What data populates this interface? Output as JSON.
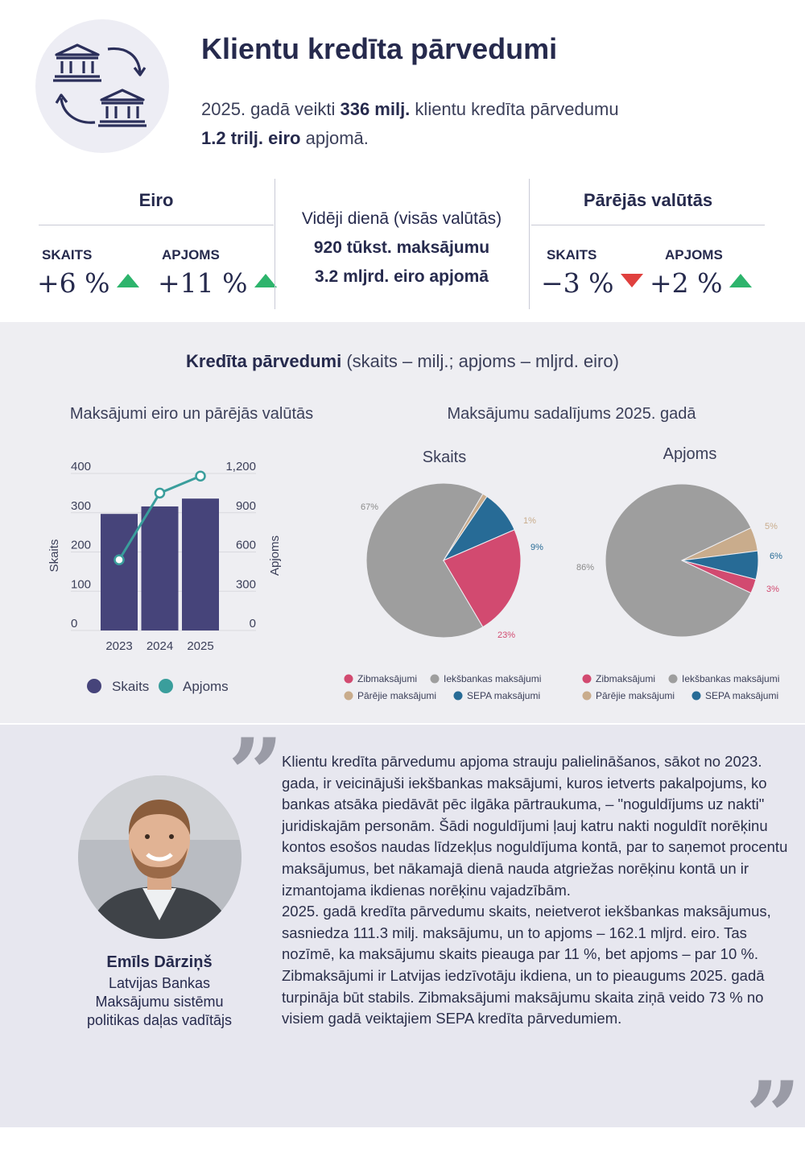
{
  "header": {
    "title": "Klientu kredīta pārvedumi",
    "intro_1": "2025. gadā veikti ",
    "intro_count": "336 milj.",
    "intro_2": " klientu kredīta pārvedumu",
    "intro_volume": "1.2 trilj. eiro",
    "intro_3": " apjomā.",
    "icon": "bank-transfer-icon"
  },
  "stats": {
    "euro": {
      "title": "Eiro",
      "count_label": "SKAITS",
      "count_value": "+6 %",
      "count_trend": "up",
      "volume_label": "APJOMS",
      "volume_value": "+11 %",
      "volume_trend": "up"
    },
    "daily": {
      "line1": "Vidēji dienā (visās valūtās)",
      "line2": "920 tūkst.  maksājumu",
      "line3": "3.2 mljrd. eiro apjomā"
    },
    "other": {
      "title": "Pārējās valūtās",
      "count_label": "SKAITS",
      "count_value": "−3 %",
      "count_trend": "down",
      "volume_label": "APJOMS",
      "volume_value": "+2 %",
      "volume_trend": "up"
    },
    "colors": {
      "up": "#2db46c",
      "down": "#e0403e"
    }
  },
  "charts_section": {
    "title_bold": "Kredīta pārvedumi",
    "title_rest": " (skaits – milj.; apjoms – mljrd. eiro)",
    "bar_title": "Maksājumi eiro un pārējās valūtās",
    "pie_title": "Maksājumu sadalījums 2025. gadā"
  },
  "chart_data": [
    {
      "type": "bar",
      "title": "Maksājumi eiro un pārējās valūtās",
      "categories": [
        "2023",
        "2024",
        "2025"
      ],
      "series": [
        {
          "name": "Skaits",
          "type": "bar",
          "axis": "left",
          "values": [
            297,
            316,
            336
          ],
          "color": "#46447a"
        },
        {
          "name": "Apjoms",
          "type": "line",
          "axis": "right",
          "values": [
            540,
            1050,
            1180
          ],
          "color": "#3a9e9c"
        }
      ],
      "ylabel": "Skaits",
      "y2label": "Apjoms",
      "ylim": [
        0,
        400
      ],
      "y2lim": [
        0,
        1200
      ],
      "yticks": [
        "0",
        "100",
        "200",
        "300",
        "400"
      ],
      "y2ticks": [
        "0",
        "300",
        "600",
        "900",
        "1,200"
      ],
      "legend": [
        "Skaits",
        "Apjoms"
      ]
    },
    {
      "type": "pie",
      "title": "Skaits",
      "slices": [
        {
          "name": "Iekšbankas maksājumi",
          "value": 67,
          "label": "67%",
          "color": "#9e9e9e"
        },
        {
          "name": "Pārējie maksājumi",
          "value": 1,
          "label": "1%",
          "color": "#c9ac8c"
        },
        {
          "name": "SEPA maksājumi",
          "value": 9,
          "label": "9%",
          "color": "#276b96"
        },
        {
          "name": "Zibmaksājumi",
          "value": 23,
          "label": "23%",
          "color": "#d24a70"
        }
      ],
      "legend": [
        "Zibmaksājumi",
        "Iekšbankas maksājumi",
        "Pārējie maksājumi",
        "SEPA maksājumi"
      ]
    },
    {
      "type": "pie",
      "title": "Apjoms",
      "slices": [
        {
          "name": "Iekšbankas maksājumi",
          "value": 86,
          "label": "86%",
          "color": "#9e9e9e"
        },
        {
          "name": "Pārējie maksājumi",
          "value": 5,
          "label": "5%",
          "color": "#c9ac8c"
        },
        {
          "name": "SEPA maksājumi",
          "value": 6,
          "label": "6%",
          "color": "#276b96"
        },
        {
          "name": "Zibmaksājumi",
          "value": 3,
          "label": "3%",
          "color": "#d24a70"
        }
      ],
      "legend": [
        "Zibmaksājumi",
        "Iekšbankas maksājumi",
        "Pārējie maksājumi",
        "SEPA maksājumi"
      ]
    }
  ],
  "quote": {
    "person_name": "Emīls Dārziņš",
    "person_role_1": "Latvijas Bankas",
    "person_role_2": "Maksājumu sistēmu",
    "person_role_3": "politikas daļas vadītājs",
    "paragraph_1": "Klientu kredīta pārvedumu apjoma strauju palielināšanos, sākot no 2023. gada, ir veicinājuši iekšbankas maksājumi, kuros ietverts pakalpojums, ko bankas atsāka piedāvāt pēc ilgāka pārtraukuma, – \"noguldījums uz nakti\" juridiskajām personām. Šādi noguldījumi ļauj katru nakti noguldīt norēķinu kontos esošos naudas līdzekļus noguldījuma kontā, par to saņemot procentu maksājumus, bet nākamajā dienā nauda atgriežas norēķinu kontā un ir izmantojama ikdienas norēķinu vajadzībām.",
    "paragraph_2": "2025. gadā kredīta pārvedumu skaits, neietverot iekšbankas maksājumus, sasniedza 111.3 milj. maksājumu, un to apjoms – 162.1 mljrd. eiro. Tas nozīmē, ka maksājumu skaits pieauga par 11 %, bet apjoms – par 10 %.",
    "paragraph_3": "Zibmaksājumi ir Latvijas iedzīvotāju ikdiena, un to pieaugums 2025. gadā turpināja būt stabils. Zibmaksājumi maksājumu skaita ziņā veido 73 % no visiem gadā veiktajiem SEPA kredīta pārvedumiem.",
    "open_mark": "”",
    "close_mark": "”"
  }
}
